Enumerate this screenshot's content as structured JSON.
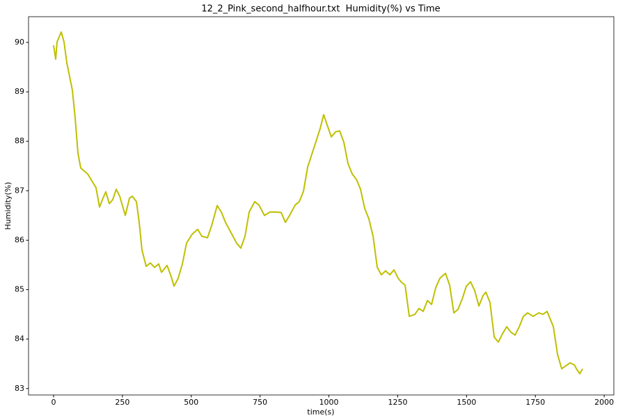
{
  "chart_data": {
    "type": "line",
    "title": "12_2_Pink_second_halfhour.txt  Humidity(%) vs Time",
    "xlabel": "time(s)",
    "ylabel": "Humidity(%)",
    "xlim": [
      -91,
      2035
    ],
    "ylim": [
      82.87,
      90.52
    ],
    "xticks": [
      0,
      250,
      500,
      750,
      1000,
      1250,
      1500,
      1750,
      2000
    ],
    "yticks": [
      83,
      84,
      85,
      86,
      87,
      88,
      89,
      90
    ],
    "series": [
      {
        "name": "Humidity(%)",
        "color": "#bfbf00",
        "x": [
          0,
          7.6,
          12.6,
          27.8,
          37.9,
          48,
          58.2,
          68.3,
          78.4,
          88.5,
          98.6,
          108.7,
          123.9,
          139.1,
          154.2,
          166.9,
          179.5,
          189.6,
          202.3,
          214.9,
          227.6,
          240.2,
          260.5,
          275.6,
          285.7,
          300.9,
          311,
          321.1,
          336.3,
          351.5,
          366.6,
          381.8,
          391.9,
          412.2,
          427.4,
          437.4,
          452.6,
          467.8,
          482.9,
          503.2,
          523.4,
          538.5,
          558.8,
          573.9,
          594.2,
          609.3,
          624.5,
          644.7,
          665,
          680.1,
          695.3,
          710.5,
          730.7,
          745.9,
          766.1,
          786.3,
          806.6,
          826.8,
          842,
          857.1,
          877.4,
          892.5,
          907.7,
          922.9,
          948.2,
          968.4,
          981,
          993.7,
          1008.8,
          1024,
          1039.2,
          1054.3,
          1069.5,
          1084.7,
          1099.9,
          1115,
          1130.2,
          1145.4,
          1160.5,
          1175.7,
          1190.9,
          1206,
          1221.2,
          1236.4,
          1251.6,
          1261.7,
          1276.8,
          1292,
          1312.2,
          1327.4,
          1342.6,
          1357.8,
          1372.9,
          1388.1,
          1403.3,
          1423.5,
          1438.7,
          1453.8,
          1469,
          1484.2,
          1499.3,
          1514.5,
          1529.7,
          1544.9,
          1560,
          1570.1,
          1585.3,
          1600.5,
          1615.6,
          1630.8,
          1646,
          1661.1,
          1676.3,
          1691.5,
          1706.7,
          1721.8,
          1742.1,
          1762.3,
          1777.5,
          1792.6,
          1815.4,
          1830.5,
          1845.7,
          1860.9,
          1876,
          1891.2,
          1901.3,
          1911.4,
          1921.5
        ],
        "values": [
          89.94,
          89.66,
          90.01,
          90.21,
          90.01,
          89.59,
          89.31,
          89.03,
          88.47,
          87.76,
          87.46,
          87.41,
          87.34,
          87.2,
          87.06,
          86.67,
          86.85,
          86.98,
          86.74,
          86.82,
          87.03,
          86.89,
          86.5,
          86.85,
          86.89,
          86.78,
          86.36,
          85.8,
          85.47,
          85.54,
          85.45,
          85.52,
          85.35,
          85.49,
          85.26,
          85.07,
          85.23,
          85.52,
          85.94,
          86.12,
          86.22,
          86.08,
          86.05,
          86.29,
          86.7,
          86.57,
          86.36,
          86.15,
          85.94,
          85.84,
          86.08,
          86.57,
          86.78,
          86.71,
          86.5,
          86.57,
          86.57,
          86.56,
          86.36,
          86.5,
          86.71,
          86.78,
          86.99,
          87.48,
          87.91,
          88.26,
          88.54,
          88.33,
          88.09,
          88.19,
          88.21,
          87.98,
          87.55,
          87.34,
          87.23,
          87.03,
          86.64,
          86.43,
          86.08,
          85.45,
          85.3,
          85.38,
          85.3,
          85.4,
          85.23,
          85.16,
          85.09,
          84.46,
          84.5,
          84.62,
          84.56,
          84.78,
          84.7,
          85.04,
          85.23,
          85.33,
          85.09,
          84.53,
          84.6,
          84.81,
          85.07,
          85.16,
          84.98,
          84.67,
          84.88,
          84.95,
          84.74,
          84.04,
          83.94,
          84.11,
          84.25,
          84.14,
          84.08,
          84.25,
          84.46,
          84.53,
          84.46,
          84.53,
          84.5,
          84.56,
          84.25,
          83.69,
          83.4,
          83.46,
          83.52,
          83.48,
          83.38,
          83.3,
          83.4
        ]
      }
    ]
  }
}
